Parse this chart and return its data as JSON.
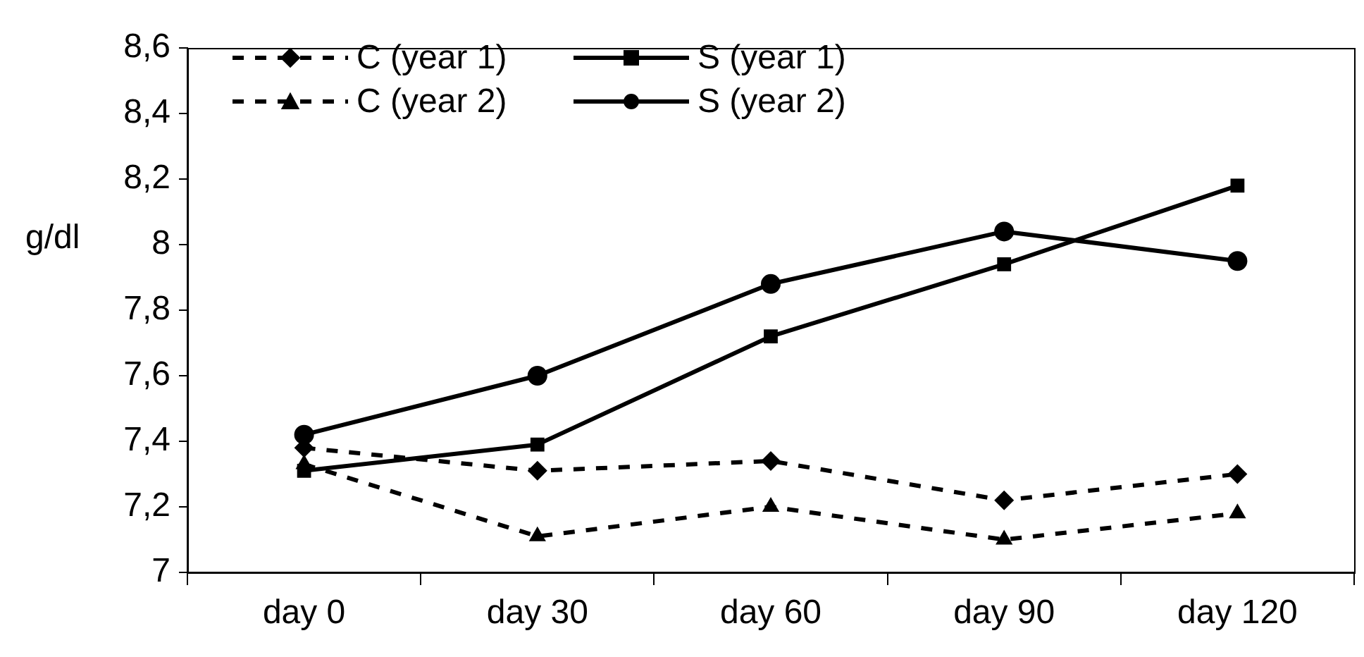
{
  "chart_data": {
    "type": "line",
    "ylabel": "g/dl",
    "categories": [
      "day 0",
      "day 30",
      "day 60",
      "day 90",
      "day 120"
    ],
    "ylim": [
      7,
      8.6
    ],
    "yticks": [
      7,
      {
        "value": 7.2,
        "label": "7,2"
      },
      {
        "value": 7.4,
        "label": "7,4"
      },
      {
        "value": 7.6,
        "label": "7,6"
      },
      {
        "value": 7.8,
        "label": "7,8"
      },
      8,
      {
        "value": 8.2,
        "label": "8,2"
      },
      {
        "value": 8.4,
        "label": "8,4"
      },
      {
        "value": 8.6,
        "label": "8,6"
      }
    ],
    "grid": false,
    "legend": "top left",
    "series": [
      {
        "name": "C (year 1)",
        "color": "#000000",
        "marker": "diamond",
        "line_style": "dashed",
        "values": [
          7.38,
          7.31,
          7.34,
          7.22,
          7.3
        ]
      },
      {
        "name": "S (year 1)",
        "color": "#000000",
        "marker": "square",
        "line_style": "solid",
        "values": [
          7.31,
          7.39,
          7.72,
          7.94,
          8.18
        ]
      },
      {
        "name": "C (year 2)",
        "color": "#000000",
        "marker": "triangle",
        "line_style": "dashed",
        "values": [
          7.33,
          7.11,
          7.2,
          7.1,
          7.18
        ]
      },
      {
        "name": "S (year 2)",
        "color": "#000000",
        "marker": "circle",
        "line_style": "solid",
        "values": [
          7.42,
          7.6,
          7.88,
          8.04,
          7.95
        ]
      }
    ]
  }
}
